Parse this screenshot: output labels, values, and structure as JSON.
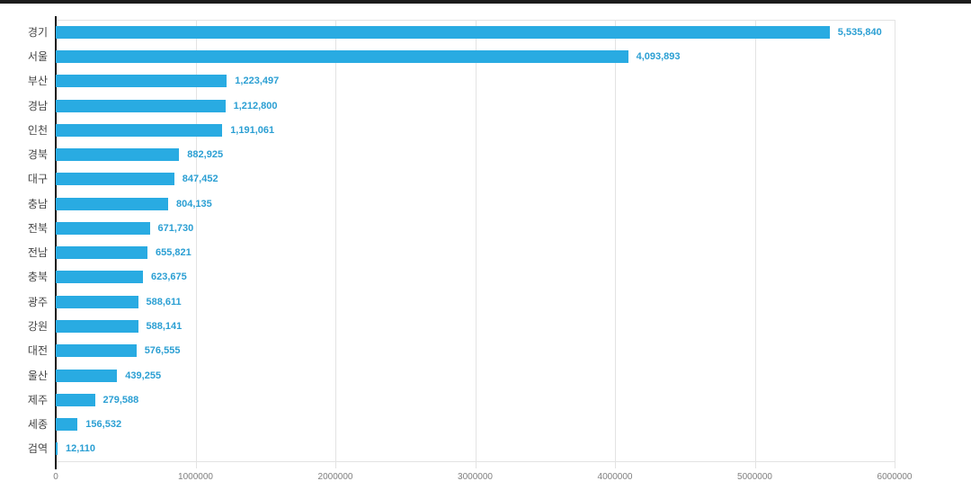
{
  "chart_data": {
    "type": "bar",
    "orientation": "horizontal",
    "title": "",
    "xlabel": "",
    "ylabel": "",
    "categories": [
      "경기",
      "서울",
      "부산",
      "경남",
      "인천",
      "경북",
      "대구",
      "충남",
      "전북",
      "전남",
      "충북",
      "광주",
      "강원",
      "대전",
      "울산",
      "제주",
      "세종",
      "검역"
    ],
    "values": [
      5535840,
      4093893,
      1223497,
      1212800,
      1191061,
      882925,
      847452,
      804135,
      671730,
      655821,
      623675,
      588611,
      588141,
      576555,
      439255,
      279588,
      156532,
      12110
    ],
    "value_labels": [
      "5,535,840",
      "4,093,893",
      "1,223,497",
      "1,212,800",
      "1,191,061",
      "882,925",
      "847,452",
      "804,135",
      "671,730",
      "655,821",
      "623,675",
      "588,611",
      "588,141",
      "576,555",
      "439,255",
      "279,588",
      "156,532",
      "12,110"
    ],
    "x_ticks": [
      0,
      1000000,
      2000000,
      3000000,
      4000000,
      5000000,
      6000000
    ],
    "x_tick_labels": [
      "0",
      "1000000",
      "2000000",
      "3000000",
      "4000000",
      "5000000",
      "6000000"
    ],
    "xlim": [
      0,
      6000000
    ],
    "grid": true,
    "legend": false,
    "bar_color": "#29abe2",
    "value_label_color": "#2b9fd3",
    "category_label_color": "#444444",
    "axis_tick_label_color": "#808080",
    "gridline_color": "#e3e3e3",
    "axis_line_color": "#111111"
  }
}
